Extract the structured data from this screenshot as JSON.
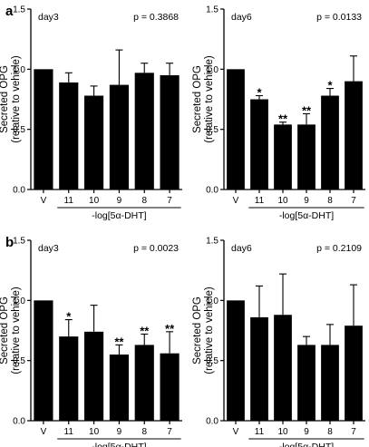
{
  "panel_labels": [
    "a",
    "b"
  ],
  "chart_data": [
    {
      "panel": "a",
      "type": "bar",
      "title": "day3",
      "pvalue": "p = 0.3868",
      "categories": [
        "V",
        "11",
        "10",
        "9",
        "8",
        "7"
      ],
      "values": [
        1.0,
        0.89,
        0.78,
        0.87,
        0.97,
        0.95
      ],
      "errors": [
        0,
        0.08,
        0.08,
        0.29,
        0.08,
        0.1
      ],
      "significance": [
        "",
        "",
        "",
        "",
        "",
        ""
      ],
      "xlabel": "-log[5α-DHT]",
      "ylabel": [
        "Secreted OPG",
        "(relative to vehicle)"
      ],
      "ylim": [
        0,
        1.5
      ],
      "yticks": [
        "0.0",
        "0.5",
        "1.0",
        "1.5"
      ]
    },
    {
      "panel": "a",
      "type": "bar",
      "title": "day6",
      "pvalue": "p = 0.0133",
      "categories": [
        "V",
        "11",
        "10",
        "9",
        "8",
        "7"
      ],
      "values": [
        1.0,
        0.75,
        0.54,
        0.54,
        0.78,
        0.9
      ],
      "errors": [
        0,
        0.03,
        0.02,
        0.09,
        0.06,
        0.21
      ],
      "significance": [
        "",
        "*",
        "**",
        "**",
        "*",
        ""
      ],
      "xlabel": "-log[5α-DHT]",
      "ylabel": [
        "Secreted OPG",
        "(relative to vehicle)"
      ],
      "ylim": [
        0,
        1.5
      ],
      "yticks": [
        "0.0",
        "0.5",
        "1.0",
        "1.5"
      ]
    },
    {
      "panel": "b",
      "type": "bar",
      "title": "day3",
      "pvalue": "p = 0.0023",
      "categories": [
        "V",
        "11",
        "10",
        "9",
        "8",
        "7"
      ],
      "values": [
        1.0,
        0.7,
        0.74,
        0.55,
        0.63,
        0.56
      ],
      "errors": [
        0,
        0.14,
        0.22,
        0.08,
        0.09,
        0.18
      ],
      "significance": [
        "",
        "*",
        "",
        "**",
        "**",
        "**"
      ],
      "xlabel": "-log[5α-DHT]",
      "ylabel": [
        "Secreted OPG",
        "(relative to vehicle)"
      ],
      "ylim": [
        0,
        1.5
      ],
      "yticks": [
        "0.0",
        "0.5",
        "1.0",
        "1.5"
      ]
    },
    {
      "panel": "b",
      "type": "bar",
      "title": "day6",
      "pvalue": "p = 0.2109",
      "categories": [
        "V",
        "11",
        "10",
        "9",
        "8",
        "7"
      ],
      "values": [
        1.0,
        0.86,
        0.88,
        0.63,
        0.63,
        0.79
      ],
      "errors": [
        0,
        0.26,
        0.34,
        0.07,
        0.17,
        0.34
      ],
      "significance": [
        "",
        "",
        "",
        "",
        "",
        ""
      ],
      "xlabel": "-log[5α-DHT]",
      "ylabel": [
        "Secreted OPG",
        "(relative to vehicle)"
      ],
      "ylim": [
        0,
        1.5
      ],
      "yticks": [
        "0.0",
        "0.5",
        "1.0",
        "1.5"
      ]
    }
  ]
}
